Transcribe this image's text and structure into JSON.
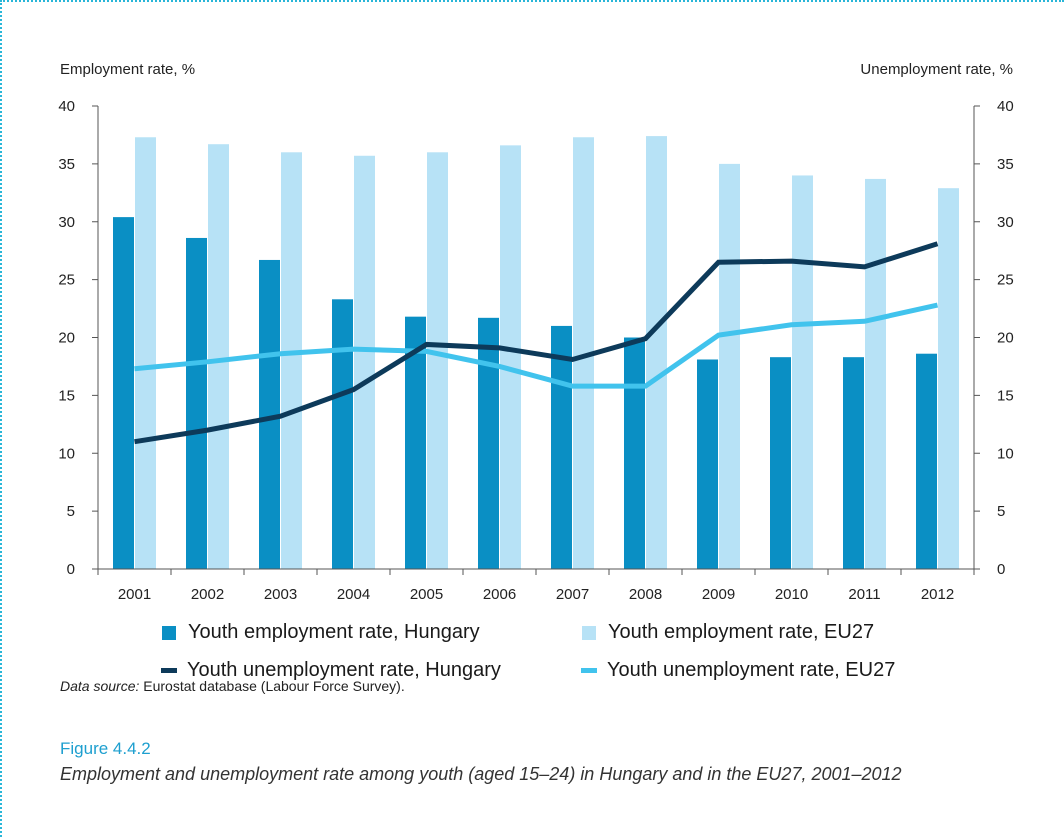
{
  "chart_data": {
    "type": "bar",
    "categories": [
      "2001",
      "2002",
      "2003",
      "2004",
      "2005",
      "2006",
      "2007",
      "2008",
      "2009",
      "2010",
      "2011",
      "2012"
    ],
    "left_axis_title": "Employment rate, %",
    "right_axis_title": "Unemployment rate, %",
    "ylim": [
      0,
      40
    ],
    "y_ticks": [
      "0",
      "5",
      "10",
      "15",
      "20",
      "25",
      "30",
      "35",
      "40"
    ],
    "grid": false,
    "legend_position": "bottom",
    "series": [
      {
        "name": "Youth employment rate, Hungary",
        "kind": "bar",
        "axis": "left",
        "color": "#0a8fc4",
        "values": [
          30.4,
          28.6,
          26.7,
          23.3,
          21.8,
          21.7,
          21.0,
          20.0,
          18.1,
          18.3,
          18.3,
          18.6
        ]
      },
      {
        "name": "Youth employment rate, EU27",
        "kind": "bar",
        "axis": "left",
        "color": "#b7e2f6",
        "values": [
          37.3,
          36.7,
          36.0,
          35.7,
          36.0,
          36.6,
          37.3,
          37.4,
          35.0,
          34.0,
          33.7,
          32.9
        ]
      },
      {
        "name": "Youth unemployment rate, Hungary",
        "kind": "line",
        "axis": "right",
        "color": "#0d3a5a",
        "values": [
          11.0,
          12.0,
          13.2,
          15.5,
          19.4,
          19.1,
          18.1,
          19.9,
          26.5,
          26.6,
          26.1,
          28.1
        ]
      },
      {
        "name": "Youth unemployment rate, EU27",
        "kind": "line",
        "axis": "right",
        "color": "#41c3ed",
        "values": [
          17.3,
          17.9,
          18.6,
          19.0,
          18.8,
          17.5,
          15.8,
          15.8,
          20.2,
          21.1,
          21.4,
          22.8
        ]
      }
    ]
  },
  "source": {
    "label": "Data source:",
    "text": " Eurostat database (Labour Force Survey)."
  },
  "figure": {
    "label": "Figure 4.4.2",
    "caption": "Employment and unemployment rate among youth (aged 15–24) in Hungary and in the EU27, 2001–2012"
  }
}
